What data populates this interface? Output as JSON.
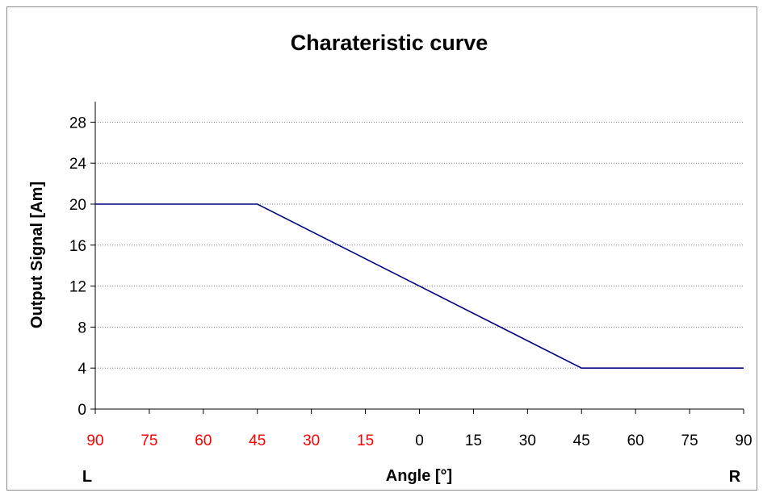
{
  "chart_data": {
    "type": "line",
    "title": "Charateristic curve",
    "xlabel": "Angle [°]",
    "ylabel": "Output Signal [Am]",
    "left_label": "L",
    "right_label": "R",
    "x_tick_labels": [
      "90",
      "75",
      "60",
      "45",
      "30",
      "15",
      "0",
      "15",
      "30",
      "45",
      "60",
      "75",
      "90"
    ],
    "x_tick_colors": [
      "#ff0000",
      "#ff0000",
      "#ff0000",
      "#ff0000",
      "#ff0000",
      "#ff0000",
      "#000000",
      "#000000",
      "#000000",
      "#000000",
      "#000000",
      "#000000",
      "#000000"
    ],
    "y_ticks": [
      0,
      4,
      8,
      12,
      16,
      20,
      24,
      28
    ],
    "xlim": [
      -90,
      90
    ],
    "ylim": [
      0,
      30
    ],
    "grid": "horizontal dotted",
    "line_color": "#000080",
    "series": [
      {
        "x": [
          -90,
          -45,
          45,
          90
        ],
        "y": [
          20,
          20,
          4,
          4
        ]
      }
    ]
  }
}
